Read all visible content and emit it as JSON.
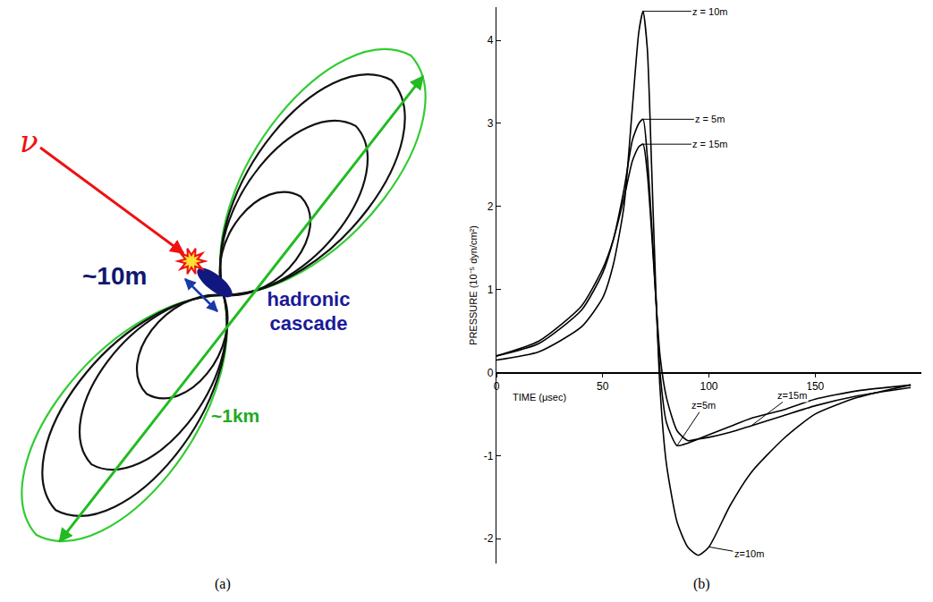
{
  "panel_labels": [
    "(a)",
    "(b)"
  ],
  "diagram": {
    "neutrino": "ν",
    "cascade_size": "~10m",
    "cascade": "hadronic cascade",
    "pattern_size": "~1km"
  },
  "chart_data": {
    "type": "line",
    "x_label": "TIME (μsec)",
    "y_label": "PRESSURE (10⁻⁵ dyn/cm²)",
    "xlim": [
      0,
      200
    ],
    "xticks": [
      0,
      50,
      100,
      150
    ],
    "ylim": [
      -2.3,
      4.4
    ],
    "yticks": [
      -2,
      -1,
      0,
      1,
      2,
      3,
      4
    ],
    "x": [
      0,
      20,
      40,
      50,
      55,
      60,
      64,
      67,
      69,
      71,
      73,
      75,
      77,
      80,
      85,
      90,
      95,
      100,
      110,
      120,
      135,
      150,
      170,
      195
    ],
    "color": "#000000",
    "series": [
      {
        "name": "z = 10m",
        "values": [
          0.15,
          0.25,
          0.55,
          0.9,
          1.3,
          2.0,
          3.2,
          4.1,
          4.35,
          3.9,
          2.5,
          1.0,
          -0.2,
          -1.1,
          -1.8,
          -2.1,
          -2.2,
          -2.1,
          -1.6,
          -1.2,
          -0.8,
          -0.5,
          -0.3,
          -0.15
        ]
      },
      {
        "name": "z = 5m",
        "values": [
          0.2,
          0.35,
          0.75,
          1.2,
          1.6,
          2.2,
          2.8,
          3.0,
          3.05,
          2.6,
          1.8,
          0.9,
          0.0,
          -0.6,
          -0.88,
          -0.85,
          -0.8,
          -0.75,
          -0.65,
          -0.55,
          -0.45,
          -0.32,
          -0.22,
          -0.15
        ]
      },
      {
        "name": "z = 15m",
        "values": [
          0.2,
          0.38,
          0.8,
          1.25,
          1.6,
          2.1,
          2.55,
          2.72,
          2.75,
          2.4,
          1.7,
          0.9,
          0.2,
          -0.3,
          -0.7,
          -0.82,
          -0.8,
          -0.78,
          -0.72,
          -0.64,
          -0.52,
          -0.4,
          -0.28,
          -0.18
        ]
      }
    ],
    "annotations": [
      {
        "text": "z=5m",
        "x": 85,
        "y": -0.88
      },
      {
        "text": "z=15m",
        "x": 120,
        "y": -0.64
      },
      {
        "text": "z=10m",
        "x": 100,
        "y": -2.1
      }
    ]
  }
}
